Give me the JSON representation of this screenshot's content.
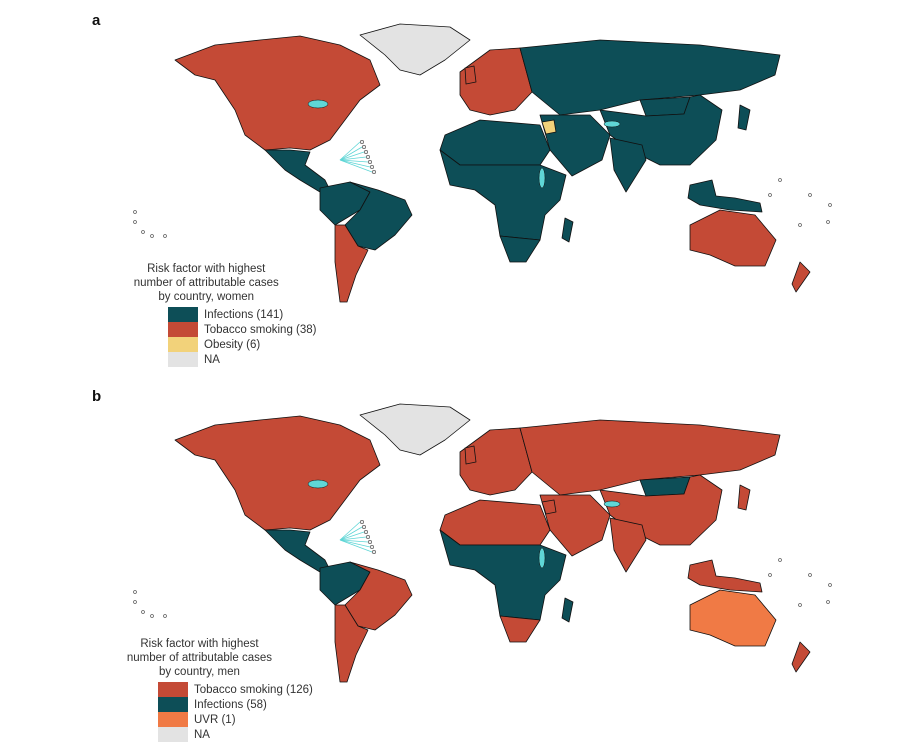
{
  "colors": {
    "infections": "#0d4e57",
    "tobacco": "#c44a36",
    "obesity": "#f2d27a",
    "uvr": "#f07a45",
    "na": "#e3e3e3",
    "water": "#5fd6d6"
  },
  "panels": [
    {
      "label": "a",
      "legend_title": [
        "Risk factor with highest",
        "number of attributable cases",
        "by country, women"
      ],
      "legend": [
        {
          "key": "infections",
          "label": "Infections (141)"
        },
        {
          "key": "tobacco",
          "label": "Tobacco smoking (38)"
        },
        {
          "key": "obesity",
          "label": "Obesity (6)"
        },
        {
          "key": "na",
          "label": "NA"
        }
      ],
      "regions": {
        "north-america": "tobacco",
        "greenland": "na",
        "central-america": "infections",
        "south-america-north": "infections",
        "brazil": "infections",
        "southern-cone": "tobacco",
        "europe": "tobacco",
        "russia-central-asia": "infections",
        "mongolia": "infections",
        "east-asia": "infections",
        "india": "infections",
        "middle-east": "infections",
        "levant": "obesity",
        "north-africa": "infections",
        "sub-saharan-africa": "infections",
        "southern-africa": "infections",
        "madagascar": "infections",
        "southeast-asia": "infections",
        "japan": "infections",
        "uk": "tobacco",
        "australia": "tobacco",
        "new-zealand": "tobacco"
      }
    },
    {
      "label": "b",
      "legend_title": [
        "Risk factor with highest",
        "number of attributable cases",
        "by country, men"
      ],
      "legend": [
        {
          "key": "tobacco",
          "label": "Tobacco smoking (126)"
        },
        {
          "key": "infections",
          "label": "Infections (58)"
        },
        {
          "key": "uvr",
          "label": "UVR (1)"
        },
        {
          "key": "na",
          "label": "NA"
        }
      ],
      "regions": {
        "north-america": "tobacco",
        "greenland": "na",
        "central-america": "infections",
        "south-america-north": "infections",
        "brazil": "tobacco",
        "southern-cone": "tobacco",
        "europe": "tobacco",
        "russia-central-asia": "tobacco",
        "mongolia": "infections",
        "east-asia": "tobacco",
        "india": "tobacco",
        "middle-east": "tobacco",
        "levant": "tobacco",
        "north-africa": "tobacco",
        "sub-saharan-africa": "infections",
        "southern-africa": "tobacco",
        "madagascar": "infections",
        "southeast-asia": "tobacco",
        "japan": "tobacco",
        "uk": "tobacco",
        "australia": "uvr",
        "new-zealand": "tobacco"
      }
    }
  ]
}
